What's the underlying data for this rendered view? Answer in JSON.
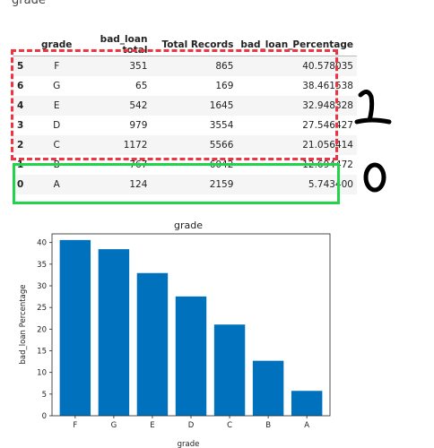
{
  "page": {
    "heading": "grade"
  },
  "table": {
    "columns": [
      "",
      "grade",
      "bad_loan total",
      "Total Records",
      "bad_loan_Percentage"
    ],
    "rows": [
      {
        "index": "5",
        "grade": "F",
        "bad_loan_total": "351",
        "total_records": "865",
        "bad_loan_percentage": "40.578035"
      },
      {
        "index": "6",
        "grade": "G",
        "bad_loan_total": "65",
        "total_records": "169",
        "bad_loan_percentage": "38.461538"
      },
      {
        "index": "4",
        "grade": "E",
        "bad_loan_total": "542",
        "total_records": "1645",
        "bad_loan_percentage": "32.948328"
      },
      {
        "index": "3",
        "grade": "D",
        "bad_loan_total": "979",
        "total_records": "3554",
        "bad_loan_percentage": "27.546427"
      },
      {
        "index": "2",
        "grade": "C",
        "bad_loan_total": "1172",
        "total_records": "5566",
        "bad_loan_percentage": "21.056414"
      },
      {
        "index": "1",
        "grade": "B",
        "bad_loan_total": "767",
        "total_records": "6042",
        "bad_loan_percentage": "12.694472"
      },
      {
        "index": "0",
        "grade": "A",
        "bad_loan_total": "124",
        "total_records": "2159",
        "bad_loan_percentage": "5.743400"
      }
    ]
  },
  "annotations": {
    "red_group_label": "1",
    "green_group_label": "0",
    "red_color": "#ef3340",
    "green_color": "#21d44a"
  },
  "chart_data": {
    "type": "bar",
    "title": "grade",
    "xlabel": "grade",
    "ylabel": "bad_loan Percentage",
    "categories": [
      "F",
      "G",
      "E",
      "D",
      "C",
      "B",
      "A"
    ],
    "values": [
      40.578035,
      38.461538,
      32.948328,
      27.546427,
      21.056414,
      12.694472,
      5.7434
    ],
    "ylim": [
      0,
      42
    ],
    "yticks": [
      0,
      5,
      10,
      15,
      20,
      25,
      30,
      35,
      40
    ],
    "bar_color": "#0072bd",
    "grid": false,
    "legend": "none"
  }
}
